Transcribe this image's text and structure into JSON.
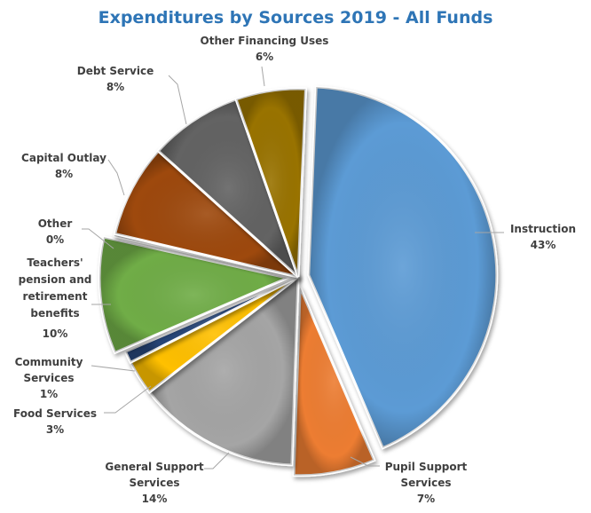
{
  "chart_data": {
    "type": "pie",
    "title": "Expenditures by Sources 2019 - All Funds",
    "slices": [
      {
        "label": "Instruction",
        "pct_label": "43%",
        "value": 43,
        "color": "#5b9bd5",
        "exploded": true
      },
      {
        "label": "Pupil Support Services",
        "pct_label": "7%",
        "value": 7,
        "color": "#ed7d31",
        "exploded": true
      },
      {
        "label": "General Support Services",
        "pct_label": "14%",
        "value": 14,
        "color": "#a5a5a5",
        "exploded": false
      },
      {
        "label": "Food Services",
        "pct_label": "3%",
        "value": 3,
        "color": "#ffc000",
        "exploded": false
      },
      {
        "label": "Community Services",
        "pct_label": "1%",
        "value": 1,
        "color": "#264478",
        "exploded": false
      },
      {
        "label": "Teachers' pension and retirement benefits",
        "pct_label": "10%",
        "value": 10,
        "color": "#70ad47",
        "exploded": true
      },
      {
        "label": "Other",
        "pct_label": "0%",
        "value": 0.2,
        "color": "#4472c4",
        "exploded": false
      },
      {
        "label": "Capital Outlay",
        "pct_label": "8%",
        "value": 8,
        "color": "#9e480e",
        "exploded": false
      },
      {
        "label": "Debt Service",
        "pct_label": "8%",
        "value": 8,
        "color": "#636363",
        "exploded": false
      },
      {
        "label": "Other Financing Uses",
        "pct_label": "6%",
        "value": 6,
        "color": "#997300",
        "exploded": false
      }
    ]
  }
}
